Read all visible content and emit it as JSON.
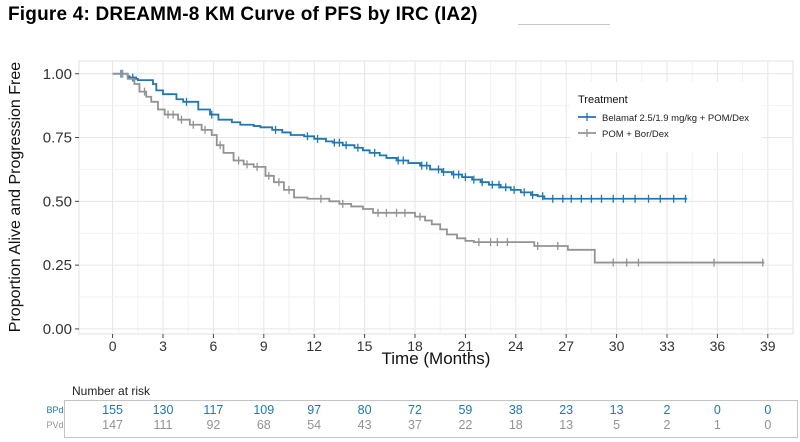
{
  "chart_data": {
    "type": "line",
    "subtype": "kaplan-meier",
    "title": "Figure 4: DREAMM-8 KM Curve of PFS by IRC (IA2)",
    "xlabel": "Time (Months)",
    "ylabel": "Proportion Alive and Progression Free",
    "xlim": [
      -2,
      40.5
    ],
    "ylim": [
      -0.02,
      1.05
    ],
    "xticks": [
      0,
      3,
      6,
      9,
      12,
      15,
      18,
      21,
      24,
      27,
      30,
      33,
      36,
      39
    ],
    "xtick_labels": [
      "0",
      "3",
      "6",
      "9",
      "12",
      "15",
      "18",
      "21",
      "24",
      "27",
      "30",
      "33",
      "36",
      "39"
    ],
    "yticks": [
      0,
      0.25,
      0.5,
      0.75,
      1
    ],
    "ytick_labels": [
      "0.00",
      "0.25",
      "0.50",
      "0.75",
      "1.00"
    ],
    "grid": true,
    "legend": {
      "title": "Treatment",
      "position": "top-right"
    },
    "series": [
      {
        "name": "Belamaf 2.5/1.9 mg/kg + POM/Dex",
        "color": "#1f77b4",
        "x": [
          0,
          0.9,
          1.0,
          1.4,
          1.5,
          2.4,
          2.6,
          3.0,
          3.8,
          4.2,
          5.1,
          5.8,
          6.3,
          7.1,
          7.6,
          8.4,
          8.8,
          9.5,
          10.1,
          10.6,
          11.4,
          12.0,
          12.7,
          13.1,
          13.7,
          14.4,
          14.9,
          15.3,
          15.9,
          16.3,
          16.9,
          17.6,
          18.3,
          18.9,
          19.6,
          20.2,
          20.8,
          21.4,
          21.9,
          22.4,
          23.1,
          23.7,
          24.3,
          24.9,
          25.3,
          25.7,
          34.2
        ],
        "y": [
          1.0,
          0.99,
          0.985,
          0.98,
          0.975,
          0.96,
          0.935,
          0.92,
          0.9,
          0.89,
          0.86,
          0.84,
          0.82,
          0.81,
          0.8,
          0.795,
          0.79,
          0.78,
          0.77,
          0.76,
          0.755,
          0.745,
          0.735,
          0.73,
          0.72,
          0.71,
          0.7,
          0.69,
          0.68,
          0.67,
          0.66,
          0.65,
          0.64,
          0.625,
          0.615,
          0.605,
          0.595,
          0.585,
          0.575,
          0.565,
          0.555,
          0.545,
          0.535,
          0.525,
          0.52,
          0.51,
          0.51
        ],
        "censor_x": [
          0.5,
          1.2,
          4.4,
          5.9,
          9.7,
          11.6,
          12.2,
          13.2,
          13.5,
          13.9,
          14.6,
          15.6,
          17.0,
          17.3,
          18.4,
          18.7,
          19.4,
          19.7,
          20.3,
          20.6,
          21.0,
          21.5,
          22.0,
          22.6,
          23.0,
          23.4,
          23.9,
          24.5,
          25.0,
          25.6,
          26.2,
          26.8,
          27.3,
          27.9,
          28.5,
          29.1,
          29.8,
          30.4,
          31.1,
          31.9,
          32.6,
          33.4,
          34.1
        ],
        "risk": [
          155,
          130,
          117,
          109,
          97,
          80,
          72,
          59,
          38,
          23,
          13,
          2,
          0,
          0
        ]
      },
      {
        "name": "POM + Bor/Dex",
        "color": "#939393",
        "x": [
          0,
          0.9,
          1.3,
          1.6,
          2.0,
          2.3,
          2.7,
          3.1,
          3.9,
          4.6,
          5.3,
          5.9,
          6.2,
          6.6,
          7.2,
          7.8,
          8.4,
          9.1,
          9.6,
          10.2,
          10.8,
          11.6,
          12.0,
          12.9,
          13.5,
          14.2,
          14.9,
          15.5,
          18.0,
          18.6,
          19.0,
          19.5,
          19.9,
          20.5,
          21.0,
          21.5,
          25.1,
          25.6,
          27.1,
          28.7,
          29.1,
          38.8
        ],
        "y": [
          1.0,
          0.98,
          0.96,
          0.93,
          0.91,
          0.89,
          0.86,
          0.84,
          0.82,
          0.8,
          0.78,
          0.76,
          0.72,
          0.69,
          0.66,
          0.645,
          0.635,
          0.6,
          0.575,
          0.545,
          0.515,
          0.51,
          0.51,
          0.5,
          0.49,
          0.48,
          0.47,
          0.455,
          0.44,
          0.425,
          0.41,
          0.39,
          0.37,
          0.355,
          0.345,
          0.34,
          0.325,
          0.325,
          0.31,
          0.26,
          0.26,
          0.26
        ],
        "censor_x": [
          0.6,
          1.9,
          3.3,
          3.6,
          4.1,
          4.8,
          5.5,
          6.4,
          7.5,
          8.0,
          8.6,
          9.3,
          9.9,
          10.5,
          12.4,
          13.7,
          15.8,
          16.3,
          16.9,
          17.4,
          18.3,
          21.8,
          22.5,
          22.9,
          23.5,
          25.3,
          26.5,
          29.8,
          30.6,
          31.3,
          35.8,
          38.7
        ],
        "risk": [
          147,
          111,
          92,
          68,
          54,
          43,
          37,
          22,
          18,
          13,
          5,
          2,
          1,
          0
        ]
      }
    ],
    "risk_table": {
      "label": "Number at risk",
      "row_labels": [
        "BPd",
        "PVd"
      ]
    }
  }
}
